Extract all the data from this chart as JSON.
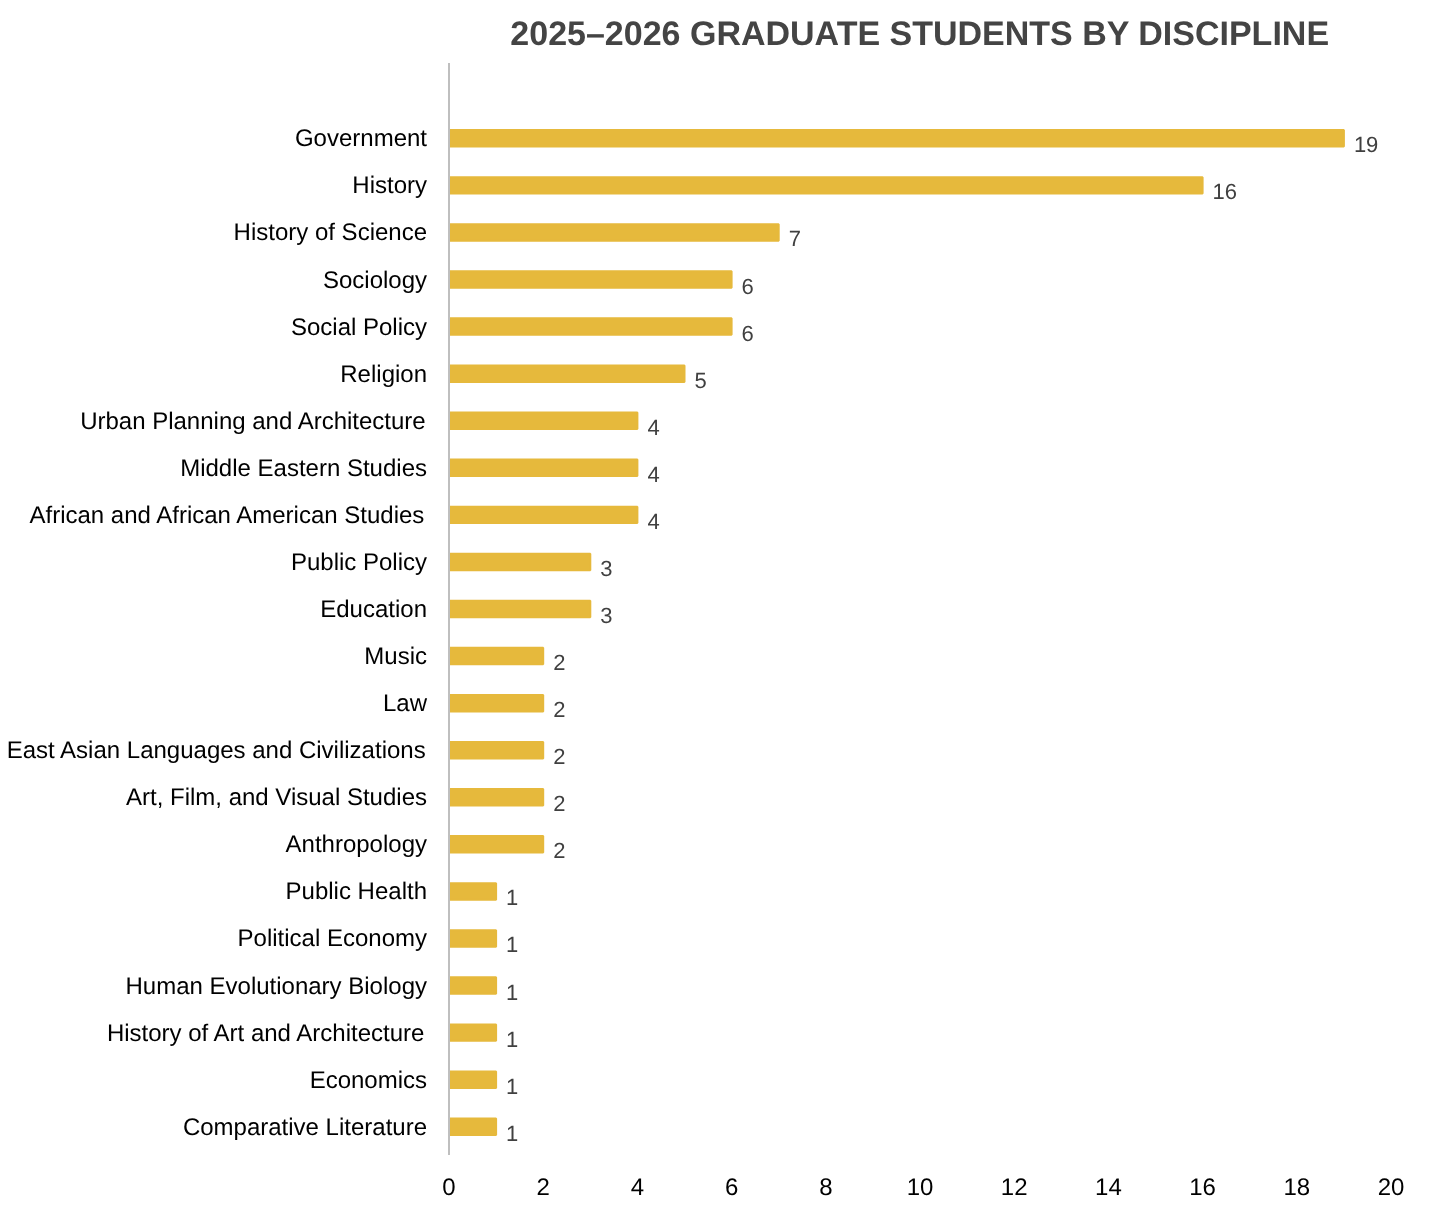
{
  "chart_data": {
    "type": "bar",
    "orientation": "horizontal",
    "title": "2025–2026 GRADUATE STUDENTS BY DISCIPLINE",
    "categories": [
      "Government",
      "History",
      "History of Science",
      "Sociology",
      "Social Policy",
      "Religion",
      "Urban Planning and Architecture",
      "Middle Eastern Studies",
      "African and African American Studies",
      "Public Policy",
      "Education",
      "Music",
      "Law",
      "East Asian Languages and Civilizations",
      "Art, Film, and Visual Studies",
      "Anthropology",
      "Public Health",
      "Political Economy",
      "Human Evolutionary Biology",
      "History of Art and Architecture",
      "Economics",
      "Comparative Literature"
    ],
    "values": [
      19,
      16,
      7,
      6,
      6,
      5,
      4,
      4,
      4,
      3,
      3,
      2,
      2,
      2,
      2,
      2,
      1,
      1,
      1,
      1,
      1,
      1
    ],
    "color": "#e6b93c",
    "xlim": [
      0,
      20
    ],
    "xticks": [
      0,
      2,
      4,
      6,
      8,
      10,
      12,
      14,
      16,
      18,
      20
    ],
    "data_labels": true,
    "grid": false
  }
}
